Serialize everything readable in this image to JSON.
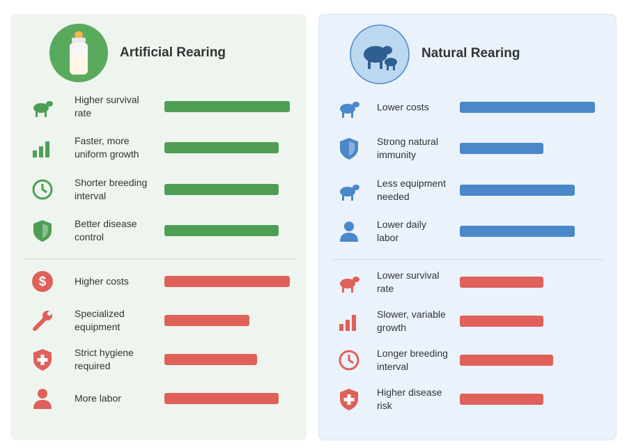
{
  "panels": [
    {
      "title": "Artificial Rearing",
      "pros": [
        {
          "label": "Higher survival rate",
          "value": 100
        },
        {
          "label": "Faster, more uniform growth",
          "value": 91
        },
        {
          "label": "Shorter breeding interval",
          "value": 91
        },
        {
          "label": "Better disease control",
          "value": 91
        }
      ],
      "cons": [
        {
          "label": "Higher costs",
          "value": 100
        },
        {
          "label": "Specialized equipment",
          "value": 68
        },
        {
          "label": "Strict hygiene required",
          "value": 74
        },
        {
          "label": "More labor",
          "value": 91
        }
      ]
    },
    {
      "title": "Natural Rearing",
      "pros": [
        {
          "label": "Lower costs",
          "value": 100
        },
        {
          "label": "Strong natural immunity",
          "value": 62
        },
        {
          "label": "Less equipment needed",
          "value": 85
        },
        {
          "label": "Lower daily labor",
          "value": 85
        }
      ],
      "cons": [
        {
          "label": "Lower survival rate",
          "value": 62
        },
        {
          "label": "Slower, variable growth",
          "value": 62
        },
        {
          "label": "Longer breeding interval",
          "value": 69
        },
        {
          "label": "Higher disease risk",
          "value": 62
        }
      ]
    }
  ]
}
